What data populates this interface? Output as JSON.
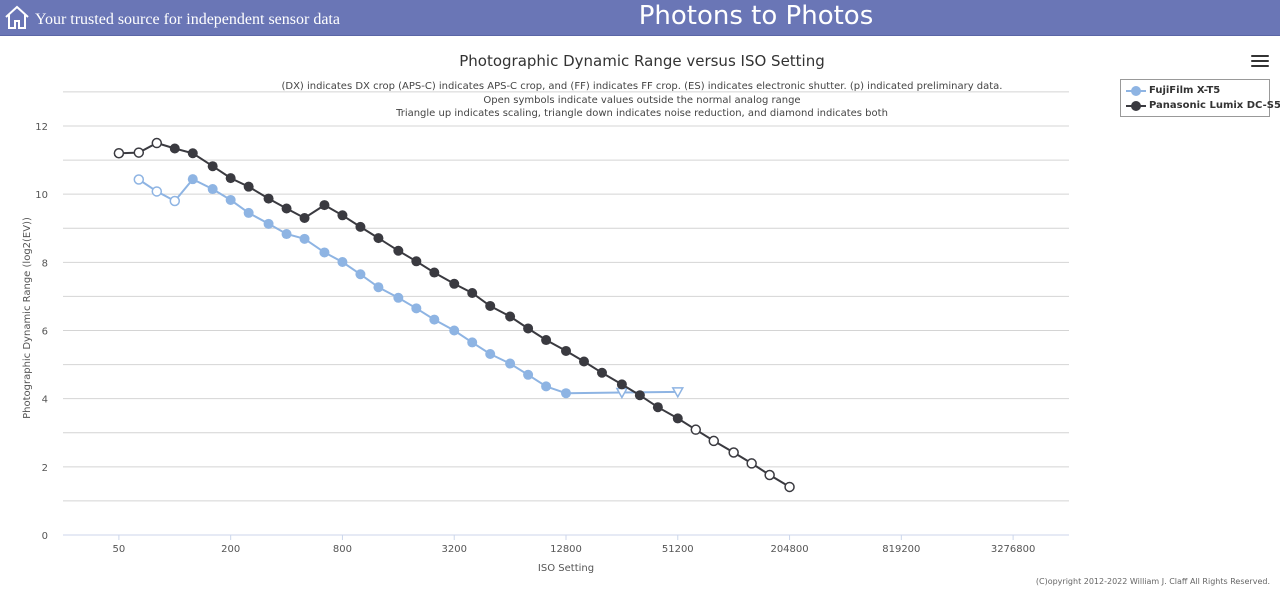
{
  "header": {
    "tagline": "Your trusted source for independent sensor data",
    "site_title": "Photons to Photos",
    "home_icon": "home-icon",
    "background_color": "#6a76b6"
  },
  "chart_data": {
    "type": "line",
    "title": "Photographic Dynamic Range versus ISO Setting",
    "subtitle_lines": [
      "(DX) indicates DX crop (APS-C) indicates APS-C crop, and (FF) indicates FF crop. (ES) indicates electronic shutter. (p) indicated preliminary data.",
      "Open symbols indicate values outside the normal analog range",
      "Triangle up indicates scaling, triangle down indicates noise reduction, and diamond indicates both"
    ],
    "xlabel": "ISO Setting",
    "ylabel": "Photographic Dynamic Range (log2(EV))",
    "x_scale": "log2",
    "xlim": [
      25,
      6553600
    ],
    "ylim": [
      0,
      12
    ],
    "x_ticks": [
      50,
      200,
      800,
      3200,
      12800,
      51200,
      204800,
      819200,
      3276800
    ],
    "x_tick_labels": [
      "50",
      "200",
      "800",
      "3200",
      "12800",
      "51200",
      "204800",
      "819200",
      "3276800"
    ],
    "y_ticks": [
      0,
      2,
      4,
      6,
      8,
      10,
      12
    ],
    "y_tick_labels": [
      "0",
      "2",
      "4",
      "6",
      "8",
      "10",
      "12"
    ],
    "grid": true,
    "legend_position": "top-right",
    "series": [
      {
        "name": "FujiFilm X-T5",
        "color": "#8eb4e3",
        "points": [
          {
            "x": 64,
            "y": 10.43,
            "marker": "open-circle"
          },
          {
            "x": 80,
            "y": 10.08,
            "marker": "open-circle"
          },
          {
            "x": 100,
            "y": 9.8,
            "marker": "open-circle"
          },
          {
            "x": 125,
            "y": 10.44,
            "marker": "circle"
          },
          {
            "x": 160,
            "y": 10.15,
            "marker": "circle"
          },
          {
            "x": 200,
            "y": 9.83,
            "marker": "circle"
          },
          {
            "x": 250,
            "y": 9.45,
            "marker": "circle"
          },
          {
            "x": 320,
            "y": 9.13,
            "marker": "circle"
          },
          {
            "x": 400,
            "y": 8.83,
            "marker": "circle"
          },
          {
            "x": 500,
            "y": 8.69,
            "marker": "circle"
          },
          {
            "x": 640,
            "y": 8.29,
            "marker": "circle"
          },
          {
            "x": 800,
            "y": 8.01,
            "marker": "circle"
          },
          {
            "x": 1000,
            "y": 7.65,
            "marker": "circle"
          },
          {
            "x": 1250,
            "y": 7.27,
            "marker": "circle"
          },
          {
            "x": 1600,
            "y": 6.96,
            "marker": "circle"
          },
          {
            "x": 2000,
            "y": 6.65,
            "marker": "circle"
          },
          {
            "x": 2500,
            "y": 6.32,
            "marker": "circle"
          },
          {
            "x": 3200,
            "y": 6.0,
            "marker": "circle"
          },
          {
            "x": 4000,
            "y": 5.65,
            "marker": "circle"
          },
          {
            "x": 5000,
            "y": 5.31,
            "marker": "circle"
          },
          {
            "x": 6400,
            "y": 5.03,
            "marker": "circle"
          },
          {
            "x": 8000,
            "y": 4.7,
            "marker": "circle"
          },
          {
            "x": 10000,
            "y": 4.36,
            "marker": "circle"
          },
          {
            "x": 12800,
            "y": 4.16,
            "marker": "circle"
          },
          {
            "x": 25600,
            "y": 4.18,
            "marker": "open-triangle-down"
          },
          {
            "x": 51200,
            "y": 4.2,
            "marker": "open-triangle-down"
          }
        ]
      },
      {
        "name": "Panasonic Lumix DC-S5",
        "color": "#3a3a40",
        "points": [
          {
            "x": 50,
            "y": 11.2,
            "marker": "open-circle"
          },
          {
            "x": 64,
            "y": 11.22,
            "marker": "open-circle"
          },
          {
            "x": 80,
            "y": 11.5,
            "marker": "open-circle"
          },
          {
            "x": 100,
            "y": 11.34,
            "marker": "circle"
          },
          {
            "x": 125,
            "y": 11.2,
            "marker": "circle"
          },
          {
            "x": 160,
            "y": 10.82,
            "marker": "circle"
          },
          {
            "x": 200,
            "y": 10.47,
            "marker": "circle"
          },
          {
            "x": 250,
            "y": 10.22,
            "marker": "circle"
          },
          {
            "x": 320,
            "y": 9.87,
            "marker": "circle"
          },
          {
            "x": 400,
            "y": 9.58,
            "marker": "circle"
          },
          {
            "x": 500,
            "y": 9.3,
            "marker": "circle"
          },
          {
            "x": 640,
            "y": 9.68,
            "marker": "circle"
          },
          {
            "x": 800,
            "y": 9.38,
            "marker": "circle"
          },
          {
            "x": 1000,
            "y": 9.04,
            "marker": "circle"
          },
          {
            "x": 1250,
            "y": 8.71,
            "marker": "circle"
          },
          {
            "x": 1600,
            "y": 8.34,
            "marker": "circle"
          },
          {
            "x": 2000,
            "y": 8.03,
            "marker": "circle"
          },
          {
            "x": 2500,
            "y": 7.7,
            "marker": "circle"
          },
          {
            "x": 3200,
            "y": 7.37,
            "marker": "circle"
          },
          {
            "x": 4000,
            "y": 7.1,
            "marker": "circle"
          },
          {
            "x": 5000,
            "y": 6.72,
            "marker": "circle"
          },
          {
            "x": 6400,
            "y": 6.41,
            "marker": "circle"
          },
          {
            "x": 8000,
            "y": 6.06,
            "marker": "circle"
          },
          {
            "x": 10000,
            "y": 5.72,
            "marker": "circle"
          },
          {
            "x": 12800,
            "y": 5.4,
            "marker": "circle"
          },
          {
            "x": 16000,
            "y": 5.09,
            "marker": "circle"
          },
          {
            "x": 20000,
            "y": 4.76,
            "marker": "circle"
          },
          {
            "x": 25600,
            "y": 4.42,
            "marker": "circle"
          },
          {
            "x": 32000,
            "y": 4.1,
            "marker": "circle"
          },
          {
            "x": 40000,
            "y": 3.75,
            "marker": "circle"
          },
          {
            "x": 51200,
            "y": 3.42,
            "marker": "circle"
          },
          {
            "x": 64000,
            "y": 3.09,
            "marker": "open-circle"
          },
          {
            "x": 80000,
            "y": 2.76,
            "marker": "open-circle"
          },
          {
            "x": 102400,
            "y": 2.42,
            "marker": "open-circle"
          },
          {
            "x": 128000,
            "y": 2.1,
            "marker": "open-circle"
          },
          {
            "x": 160000,
            "y": 1.76,
            "marker": "open-circle"
          },
          {
            "x": 204800,
            "y": 1.41,
            "marker": "open-circle"
          }
        ]
      }
    ]
  },
  "legend": {
    "items": [
      {
        "label": "FujiFilm X-T5",
        "color": "#8eb4e3"
      },
      {
        "label": "Panasonic Lumix DC-S5",
        "color": "#3a3a40"
      }
    ]
  },
  "menu_icon": "hamburger-menu-icon",
  "copyright": "(C)opyright 2012-2022 William J. Claff All Rights Reserved."
}
